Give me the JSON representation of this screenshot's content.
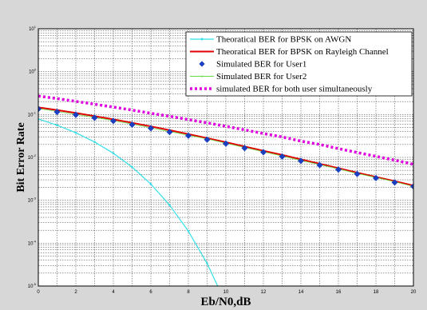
{
  "chart_data": {
    "type": "line",
    "xlabel": "Eb/N0,dB",
    "ylabel": "Bit Error Rate",
    "xlim": [
      0,
      20
    ],
    "ylog": true,
    "ylim_exp": [
      -5,
      1
    ],
    "x_ticks": [
      "0",
      "2",
      "4",
      "6",
      "8",
      "10",
      "12",
      "14",
      "16",
      "18",
      "20"
    ],
    "y_ticks": [
      "10",
      "10",
      "10",
      "10",
      "10",
      "10",
      "10"
    ],
    "y_tick_exps": [
      "1",
      "0",
      "-1",
      "-2",
      "-3",
      "-4",
      "-5"
    ],
    "grid": true,
    "legend_position": "top-right",
    "series": [
      {
        "name": "Theoratical BER for BPSK on AWGN",
        "color": "#33e0e8",
        "marker": "dot",
        "x": [
          0,
          1,
          2,
          3,
          4,
          5,
          6,
          7,
          8,
          9,
          10
        ],
        "y": [
          0.0786,
          0.0563,
          0.0375,
          0.0229,
          0.0125,
          0.00595,
          0.00239,
          0.000773,
          0.000191,
          3.36e-05,
          3.9e-06
        ]
      },
      {
        "name": "Theoratical BER for BPSK on Rayleigh Channel",
        "color": "#e00000",
        "marker": "none",
        "x": [
          0,
          1,
          2,
          3,
          4,
          5,
          6,
          7,
          8,
          9,
          10,
          11,
          12,
          13,
          14,
          15,
          16,
          17,
          18,
          19,
          20
        ],
        "y": [
          0.1464,
          0.1267,
          0.1085,
          0.0919,
          0.0771,
          0.0642,
          0.0529,
          0.0432,
          0.035,
          0.0282,
          0.0226,
          0.018,
          0.0143,
          0.0114,
          0.009,
          0.0071,
          0.0056,
          0.0044,
          0.0035,
          0.0028,
          0.0022
        ]
      },
      {
        "name": "Simulated BER for User1",
        "color": "#1a3fc0",
        "marker": "diamond",
        "x": [
          0,
          1,
          2,
          3,
          4,
          5,
          6,
          7,
          8,
          9,
          10,
          11,
          12,
          13,
          14,
          15,
          16,
          17,
          18,
          19,
          20
        ],
        "y": [
          0.135,
          0.115,
          0.099,
          0.084,
          0.071,
          0.058,
          0.048,
          0.039,
          0.032,
          0.026,
          0.021,
          0.0165,
          0.0132,
          0.0105,
          0.0083,
          0.0066,
          0.0052,
          0.0041,
          0.0033,
          0.0026,
          0.0021
        ]
      },
      {
        "name": "Simulated BER for User2",
        "color": "#66dd44",
        "marker": "x",
        "x": [
          0,
          1,
          2,
          3,
          4,
          5,
          6,
          7,
          8,
          9,
          10,
          11,
          12,
          13,
          14,
          15,
          16,
          17,
          18,
          19,
          20
        ],
        "y": [
          0.138,
          0.118,
          0.101,
          0.086,
          0.072,
          0.06,
          0.049,
          0.04,
          0.033,
          0.027,
          0.0215,
          0.017,
          0.0135,
          0.0108,
          0.0085,
          0.0068,
          0.0054,
          0.0042,
          0.0034,
          0.0027,
          0.0021
        ]
      },
      {
        "name": "simulated BER for both user simultaneously",
        "color": "#e000e0",
        "marker": "dotted",
        "x": [
          0,
          1,
          2,
          3,
          4,
          5,
          6,
          7,
          8,
          9,
          10,
          11,
          12,
          13,
          14,
          15,
          16,
          17,
          18,
          19,
          20
        ],
        "y": [
          0.27,
          0.235,
          0.202,
          0.174,
          0.149,
          0.127,
          0.107,
          0.091,
          0.076,
          0.064,
          0.053,
          0.044,
          0.036,
          0.03,
          0.024,
          0.02,
          0.016,
          0.013,
          0.0106,
          0.0086,
          0.0069
        ]
      }
    ]
  }
}
